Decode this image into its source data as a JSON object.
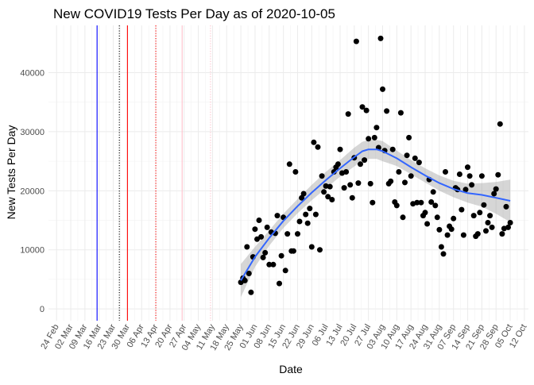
{
  "chart_data": {
    "type": "scatter",
    "title": "New COVID19 Tests Per Day as of 2020-10-05",
    "xlabel": "Date",
    "ylabel": "New Tests Per Day",
    "xlim": [
      "2020-02-20",
      "2020-10-14"
    ],
    "ylim": [
      -2000,
      48000
    ],
    "x_ticks": [
      "24 Feb",
      "02 Mar",
      "09 Mar",
      "16 Mar",
      "23 Mar",
      "30 Mar",
      "06 Apr",
      "13 Apr",
      "20 Apr",
      "27 Apr",
      "04 May",
      "11 May",
      "18 May",
      "25 May",
      "01 Jun",
      "08 Jun",
      "15 Jun",
      "22 Jun",
      "29 Jun",
      "06 Jul",
      "13 Jul",
      "20 Jul",
      "27 Jul",
      "03 Aug",
      "10 Aug",
      "17 Aug",
      "24 Aug",
      "31 Aug",
      "07 Sep",
      "14 Sep",
      "21 Sep",
      "28 Sep",
      "05 Oct",
      "12 Oct"
    ],
    "x_tick_dates": [
      "2020-02-24",
      "2020-03-02",
      "2020-03-09",
      "2020-03-16",
      "2020-03-23",
      "2020-03-30",
      "2020-04-06",
      "2020-04-13",
      "2020-04-20",
      "2020-04-27",
      "2020-05-04",
      "2020-05-11",
      "2020-05-18",
      "2020-05-25",
      "2020-06-01",
      "2020-06-08",
      "2020-06-15",
      "2020-06-22",
      "2020-06-29",
      "2020-07-06",
      "2020-07-13",
      "2020-07-20",
      "2020-07-27",
      "2020-08-03",
      "2020-08-10",
      "2020-08-17",
      "2020-08-24",
      "2020-08-31",
      "2020-09-07",
      "2020-09-14",
      "2020-09-21",
      "2020-09-28",
      "2020-10-05",
      "2020-10-12"
    ],
    "y_ticks": [
      0,
      10000,
      20000,
      30000,
      40000
    ],
    "y_tick_labels": [
      "0",
      "10000",
      "20000",
      "30000",
      "40000"
    ],
    "grid": true,
    "vlines": [
      {
        "date": "2020-03-15",
        "color": "#0000ff",
        "style": "solid"
      },
      {
        "date": "2020-03-26",
        "color": "#000000",
        "style": "dotted"
      },
      {
        "date": "2020-03-30",
        "color": "#ff0000",
        "style": "solid"
      },
      {
        "date": "2020-04-13",
        "color": "#ff0000",
        "style": "dotted"
      },
      {
        "date": "2020-04-26",
        "color": "#ffc0cb",
        "style": "solid"
      },
      {
        "date": "2020-05-10",
        "color": "#ffc0cb",
        "style": "dotted"
      }
    ],
    "series": [
      {
        "type": "points",
        "color": "#000000",
        "x": [
          "2020-05-25",
          "2020-05-26",
          "2020-05-27",
          "2020-05-28",
          "2020-05-29",
          "2020-05-30",
          "2020-05-31",
          "2020-06-01",
          "2020-06-02",
          "2020-06-03",
          "2020-06-04",
          "2020-06-05",
          "2020-06-06",
          "2020-06-07",
          "2020-06-08",
          "2020-06-09",
          "2020-06-10",
          "2020-06-11",
          "2020-06-12",
          "2020-06-13",
          "2020-06-14",
          "2020-06-15",
          "2020-06-16",
          "2020-06-17",
          "2020-06-18",
          "2020-06-19",
          "2020-06-20",
          "2020-06-21",
          "2020-06-22",
          "2020-06-23",
          "2020-06-24",
          "2020-06-25",
          "2020-06-26",
          "2020-06-27",
          "2020-06-28",
          "2020-06-29",
          "2020-06-30",
          "2020-07-01",
          "2020-07-02",
          "2020-07-03",
          "2020-07-04",
          "2020-07-05",
          "2020-07-06",
          "2020-07-07",
          "2020-07-08",
          "2020-07-09",
          "2020-07-10",
          "2020-07-11",
          "2020-07-12",
          "2020-07-13",
          "2020-07-14",
          "2020-07-15",
          "2020-07-16",
          "2020-07-17",
          "2020-07-18",
          "2020-07-19",
          "2020-07-20",
          "2020-07-21",
          "2020-07-22",
          "2020-07-23",
          "2020-07-24",
          "2020-07-25",
          "2020-07-26",
          "2020-07-27",
          "2020-07-28",
          "2020-07-29",
          "2020-07-30",
          "2020-07-31",
          "2020-08-01",
          "2020-08-02",
          "2020-08-03",
          "2020-08-04",
          "2020-08-05",
          "2020-08-06",
          "2020-08-07",
          "2020-08-08",
          "2020-08-09",
          "2020-08-10",
          "2020-08-11",
          "2020-08-12",
          "2020-08-13",
          "2020-08-14",
          "2020-08-15",
          "2020-08-16",
          "2020-08-17",
          "2020-08-18",
          "2020-08-19",
          "2020-08-20",
          "2020-08-21",
          "2020-08-22",
          "2020-08-23",
          "2020-08-24",
          "2020-08-25",
          "2020-08-26",
          "2020-08-27",
          "2020-08-28",
          "2020-08-29",
          "2020-08-30",
          "2020-08-31",
          "2020-09-01",
          "2020-09-02",
          "2020-09-03",
          "2020-09-04",
          "2020-09-05",
          "2020-09-06",
          "2020-09-07",
          "2020-09-08",
          "2020-09-09",
          "2020-09-10",
          "2020-09-11",
          "2020-09-12",
          "2020-09-13",
          "2020-09-14",
          "2020-09-15",
          "2020-09-16",
          "2020-09-17",
          "2020-09-18",
          "2020-09-19",
          "2020-09-20",
          "2020-09-21",
          "2020-09-22",
          "2020-09-23",
          "2020-09-24",
          "2020-09-25",
          "2020-09-26",
          "2020-09-27",
          "2020-09-28",
          "2020-09-29",
          "2020-09-30",
          "2020-10-01",
          "2020-10-02",
          "2020-10-03",
          "2020-10-04",
          "2020-10-05"
        ],
        "y": [
          4500,
          5200,
          4800,
          10500,
          6000,
          2800,
          8800,
          13500,
          11800,
          15000,
          12200,
          8700,
          9500,
          13800,
          7500,
          13000,
          7500,
          12800,
          15800,
          4300,
          9000,
          15500,
          6500,
          12700,
          24500,
          9800,
          9800,
          23200,
          12700,
          14800,
          18800,
          19500,
          16000,
          14500,
          17000,
          10500,
          28200,
          16000,
          27400,
          10000,
          22500,
          19800,
          20800,
          19000,
          20700,
          18500,
          23200,
          24000,
          24500,
          27000,
          23000,
          20500,
          23200,
          33000,
          21000,
          18800,
          25600,
          45300,
          21300,
          24500,
          34200,
          25200,
          33600,
          28800,
          21200,
          18000,
          29000,
          30700,
          27300,
          45800,
          37200,
          26800,
          33500,
          21200,
          21600,
          27000,
          18100,
          17500,
          23200,
          33200,
          15500,
          21400,
          26000,
          29000,
          22500,
          17800,
          25500,
          18000,
          24800,
          18000,
          15800,
          16300,
          14400,
          21900,
          18100,
          19800,
          17500,
          15500,
          13400,
          10500,
          9300,
          23200,
          12500,
          14000,
          13500,
          15300,
          20500,
          20200,
          22800,
          16800,
          12500,
          20200,
          24000,
          22500,
          21000,
          15800,
          12300,
          12700,
          16300,
          22500,
          17600,
          13200,
          14600,
          15800,
          13800,
          19500,
          20300,
          22700,
          31300,
          12700,
          13600,
          17300,
          13800,
          14600
        ]
      },
      {
        "type": "smooth",
        "color": "#3366ff",
        "band_color": "#999999",
        "x": [
          "2020-05-25",
          "2020-06-01",
          "2020-06-08",
          "2020-06-15",
          "2020-06-22",
          "2020-06-29",
          "2020-07-06",
          "2020-07-13",
          "2020-07-20",
          "2020-07-24",
          "2020-07-27",
          "2020-07-31",
          "2020-08-03",
          "2020-08-10",
          "2020-08-17",
          "2020-08-24",
          "2020-08-31",
          "2020-09-07",
          "2020-09-14",
          "2020-09-21",
          "2020-09-28",
          "2020-10-05"
        ],
        "y": [
          4800,
          8800,
          12000,
          14900,
          17400,
          19700,
          21800,
          23800,
          25700,
          26700,
          27000,
          27000,
          26700,
          25500,
          24000,
          22600,
          21300,
          20300,
          19600,
          19300,
          18800,
          18300
        ],
        "lower": [
          2000,
          7100,
          10700,
          13700,
          16200,
          18400,
          20400,
          22400,
          24100,
          25100,
          25400,
          25400,
          25000,
          24200,
          22800,
          21400,
          20000,
          18900,
          18000,
          17300,
          16100,
          14700
        ],
        "upper": [
          7600,
          10500,
          13300,
          16100,
          18600,
          21000,
          23200,
          25200,
          27300,
          28300,
          28600,
          28600,
          28400,
          26800,
          25200,
          23800,
          22600,
          21700,
          21200,
          21300,
          21500,
          21900
        ]
      }
    ]
  }
}
